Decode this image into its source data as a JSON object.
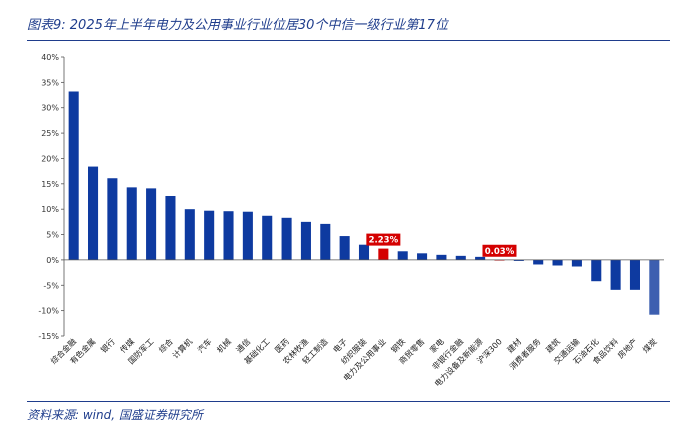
{
  "header": {
    "title": "图表9:  2025年上半年电力及公用事业行业位居30个中信一级行业第17位"
  },
  "footer": {
    "source": "资料来源: wind, 国盛证券研究所"
  },
  "colors": {
    "accent": "#1f3d8c",
    "bar_default": "#0e3aa0",
    "bar_highlight": "#d40000",
    "bar_last": "#3d5fb0"
  },
  "chart_data": {
    "type": "bar",
    "title": "",
    "xlabel": "",
    "ylabel": "",
    "ylim": [
      -15,
      40
    ],
    "yticks": [
      -15,
      -10,
      -5,
      0,
      5,
      10,
      15,
      20,
      25,
      30,
      35,
      40
    ],
    "ytick_labels": [
      "-15%",
      "-10%",
      "-5%",
      "0%",
      "5%",
      "10%",
      "15%",
      "20%",
      "25%",
      "30%",
      "35%",
      "40%"
    ],
    "grid": false,
    "categories": [
      "综合金融",
      "有色金属",
      "银行",
      "传媒",
      "国防军工",
      "综合",
      "计算机",
      "汽车",
      "机械",
      "通信",
      "基础化工",
      "医药",
      "农林牧渔",
      "轻工制造",
      "电子",
      "纺织服装",
      "电力及公用事业",
      "钢铁",
      "商贸零售",
      "家电",
      "非银行金融",
      "电力设备及新能源",
      "沪深300",
      "建材",
      "消费者服务",
      "建筑",
      "交通运输",
      "石油石化",
      "食品饮料",
      "房地产",
      "煤炭"
    ],
    "values": [
      33.2,
      18.4,
      16.1,
      14.3,
      14.1,
      12.6,
      10.0,
      9.7,
      9.6,
      9.5,
      8.7,
      8.3,
      7.5,
      7.1,
      4.7,
      3.0,
      2.23,
      1.7,
      1.3,
      1.0,
      0.8,
      0.6,
      0.03,
      -0.2,
      -0.9,
      -1.1,
      -1.3,
      -4.2,
      -5.9,
      -5.9,
      -10.8
    ],
    "highlight": [
      {
        "category": "电力及公用事业",
        "label": "2.23%"
      },
      {
        "category": "沪深300",
        "label": "0.03%"
      }
    ]
  }
}
